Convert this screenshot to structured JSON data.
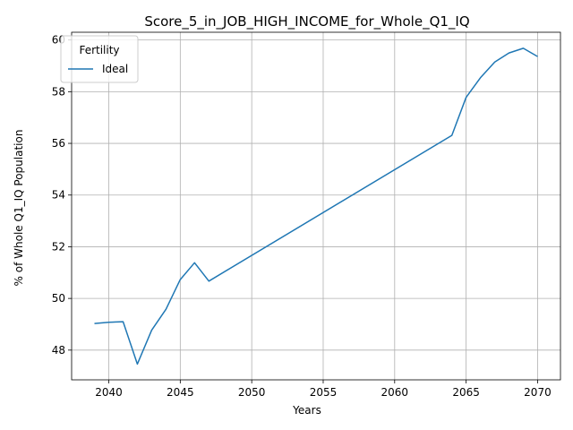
{
  "chart_data": {
    "type": "line",
    "title": "Score_5_in_JOB_HIGH_INCOME_for_Whole_Q1_IQ",
    "xlabel": "Years",
    "ylabel": "% of Whole Q1_IQ Population",
    "xlim": [
      2037.4,
      2071.6
    ],
    "ylim": [
      46.85,
      60.3
    ],
    "xticks": [
      2040,
      2045,
      2050,
      2055,
      2060,
      2065,
      2070
    ],
    "yticks": [
      48,
      50,
      52,
      54,
      56,
      58,
      60
    ],
    "grid": true,
    "legend": {
      "title": "Fertility",
      "placement": "top-left"
    },
    "series": [
      {
        "name": "Ideal",
        "color": "#1f77b4",
        "x": [
          2039,
          2040,
          2041,
          2042,
          2043,
          2044,
          2045,
          2046,
          2047,
          2064,
          2065,
          2066,
          2067,
          2068,
          2069,
          2070
        ],
        "y": [
          49.03,
          49.08,
          49.1,
          47.46,
          48.77,
          49.58,
          50.73,
          51.38,
          50.67,
          56.31,
          57.78,
          58.54,
          59.15,
          59.5,
          59.68,
          59.36
        ]
      }
    ]
  }
}
